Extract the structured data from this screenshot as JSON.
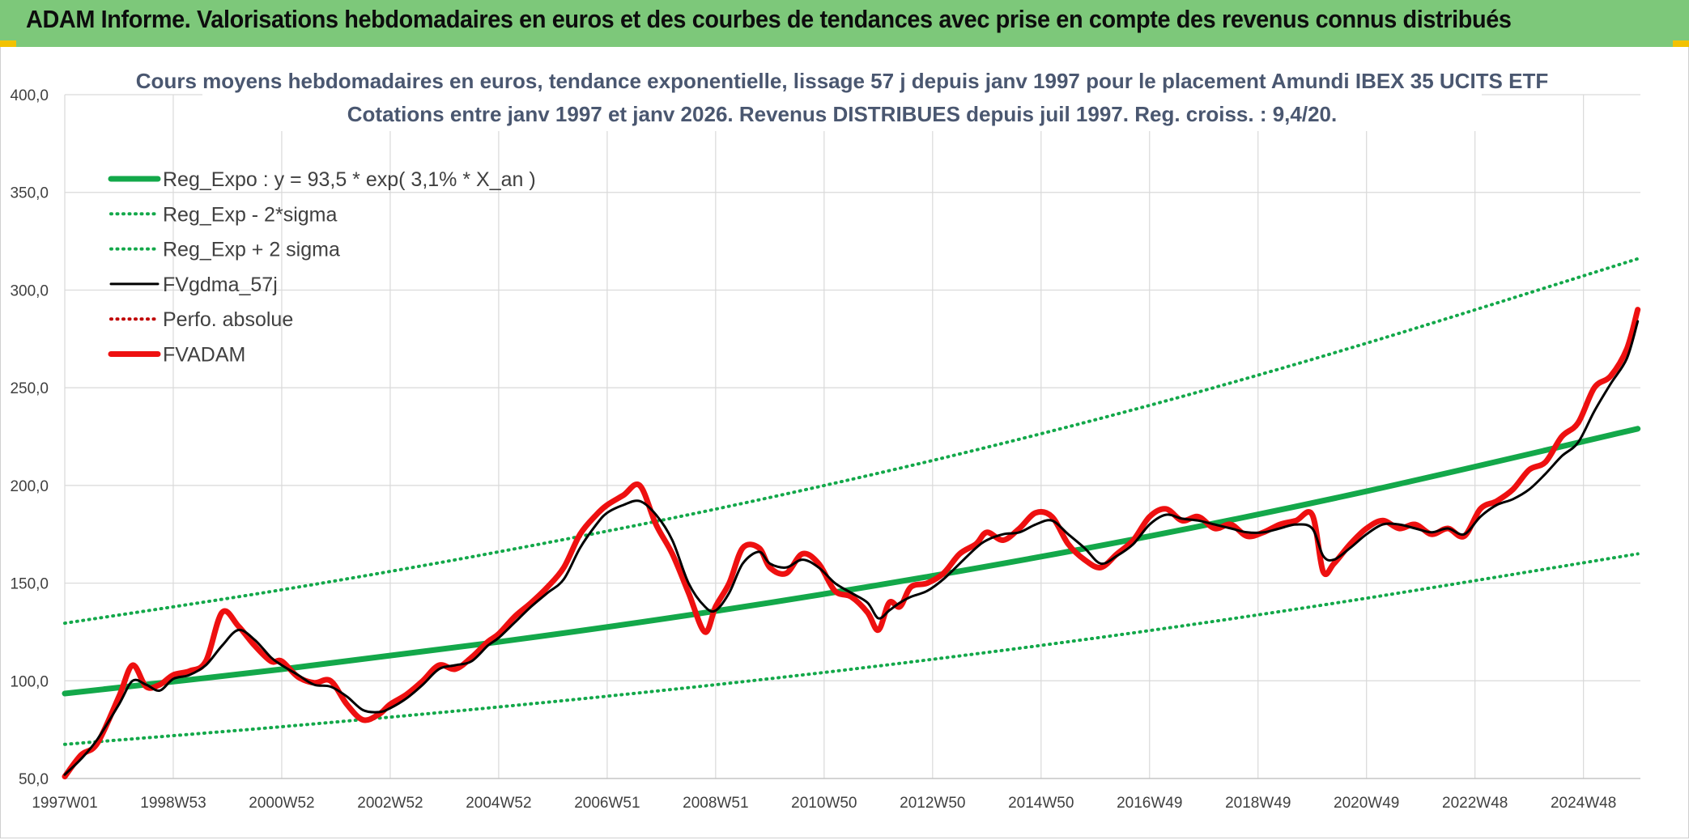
{
  "header": {
    "title": "ADAM Informe. Valorisations hebdomadaires en euros et des courbes de tendances avec prise en compte des revenus connus distribués"
  },
  "chart_data": {
    "type": "line",
    "title": "Cours moyens hebdomadaires en euros, tendance exponentielle, lissage 57 j depuis janv 1997 pour le placement Amundi IBEX 35 UCITS ETF",
    "subtitle": "Cotations entre janv 1997 et janv 2026. Revenus DISTRIBUES depuis juil 1997. Reg. croiss. : 9,4/20.",
    "xlabel": "",
    "ylabel": "",
    "xlim": [
      1997.0,
      2026.05
    ],
    "ylim": [
      50,
      400
    ],
    "y_ticks": [
      "400,0",
      "350,0",
      "300,0",
      "250,0",
      "200,0",
      "150,0",
      "100,0",
      "50,0"
    ],
    "x_tick_labels": [
      "1997W01",
      "1998W53",
      "2000W52",
      "2002W52",
      "2004W52",
      "2006W51",
      "2008W51",
      "2010W50",
      "2012W50",
      "2014W50",
      "2016W49",
      "2018W49",
      "2020W49",
      "2022W48",
      "2024W48"
    ],
    "x_ticks": [
      1997.0,
      1999.0,
      2001.0,
      2003.0,
      2005.0,
      2007.0,
      2009.0,
      2011.0,
      2013.0,
      2015.0,
      2017.0,
      2019.0,
      2021.0,
      2023.0,
      2025.0
    ],
    "grid": true,
    "legend_position": "top-left",
    "colors": {
      "trend": "#13a84a",
      "smoothed": "#000000",
      "perf": "#c00000",
      "price": "#ee1010",
      "grid": "#d9d9d9",
      "title": "#4a5770"
    },
    "series": [
      {
        "name": "Reg_Expo : y = 93,5 * exp( 3,1% *  X_an )",
        "style": "solid-thick",
        "color": "#13a84a",
        "x": [
          1997.0,
          2001.0,
          2005.0,
          2009.0,
          2013.0,
          2017.0,
          2021.0,
          2026.0
        ],
        "values": [
          93.5,
          105.9,
          119.9,
          135.7,
          153.7,
          174.0,
          197.0,
          229.0
        ]
      },
      {
        "name": "Reg_Exp - 2*sigma",
        "style": "dotted",
        "color": "#13a84a",
        "x": [
          1997.0,
          2001.0,
          2005.0,
          2009.0,
          2013.0,
          2017.0,
          2021.0,
          2026.0
        ],
        "values": [
          67.5,
          76.5,
          86.6,
          98.0,
          111.0,
          125.7,
          142.3,
          165.0
        ]
      },
      {
        "name": "Reg_Exp + 2 sigma",
        "style": "dotted",
        "color": "#13a84a",
        "x": [
          1997.0,
          2001.0,
          2005.0,
          2009.0,
          2013.0,
          2017.0,
          2021.0,
          2026.0
        ],
        "values": [
          129.5,
          146.6,
          166.0,
          187.9,
          212.8,
          241.0,
          272.8,
          316.0
        ]
      },
      {
        "name": "FVgdma_57j",
        "style": "solid",
        "color": "#000000",
        "x": [
          1997.0,
          1997.3,
          1997.6,
          1998.0,
          1998.25,
          1998.5,
          1998.75,
          1999.0,
          1999.3,
          1999.6,
          1999.9,
          2000.2,
          2000.5,
          2000.8,
          2001.0,
          2001.3,
          2001.6,
          2001.9,
          2002.2,
          2002.5,
          2002.8,
          2003.0,
          2003.3,
          2003.6,
          2003.9,
          2004.2,
          2004.5,
          2004.8,
          2005.0,
          2005.3,
          2005.6,
          2005.9,
          2006.2,
          2006.5,
          2006.8,
          2007.0,
          2007.3,
          2007.6,
          2007.9,
          2008.2,
          2008.5,
          2008.8,
          2009.0,
          2009.25,
          2009.5,
          2009.8,
          2010.0,
          2010.3,
          2010.6,
          2010.9,
          2011.2,
          2011.5,
          2011.8,
          2012.0,
          2012.2,
          2012.4,
          2012.6,
          2012.9,
          2013.2,
          2013.5,
          2013.8,
          2014.0,
          2014.3,
          2014.6,
          2014.9,
          2015.2,
          2015.5,
          2015.8,
          2016.1,
          2016.4,
          2016.7,
          2017.0,
          2017.3,
          2017.6,
          2017.9,
          2018.2,
          2018.5,
          2018.8,
          2019.1,
          2019.4,
          2019.7,
          2020.0,
          2020.2,
          2020.4,
          2020.7,
          2021.0,
          2021.3,
          2021.6,
          2021.9,
          2022.2,
          2022.5,
          2022.8,
          2023.1,
          2023.4,
          2023.7,
          2024.0,
          2024.3,
          2024.6,
          2024.9,
          2025.2,
          2025.5,
          2025.8,
          2026.0
        ],
        "values": [
          52,
          60,
          70,
          88,
          100,
          98,
          95,
          101,
          103,
          108,
          118,
          126,
          121,
          112,
          108,
          103,
          98,
          97,
          92,
          85,
          84,
          86,
          91,
          98,
          106,
          108,
          110,
          118,
          122,
          130,
          138,
          145,
          152,
          168,
          180,
          186,
          190,
          192,
          185,
          172,
          150,
          138,
          136,
          145,
          160,
          166,
          160,
          158,
          162,
          158,
          150,
          145,
          140,
          132,
          136,
          140,
          143,
          146,
          152,
          160,
          168,
          172,
          175,
          176,
          180,
          182,
          175,
          168,
          160,
          164,
          170,
          180,
          185,
          183,
          182,
          180,
          178,
          176,
          176,
          178,
          180,
          178,
          164,
          162,
          168,
          175,
          180,
          180,
          178,
          176,
          178,
          175,
          184,
          190,
          193,
          198,
          206,
          215,
          222,
          238,
          252,
          265,
          284
        ]
      },
      {
        "name": "Perfo. absolue",
        "style": "dotted",
        "color": "#c00000",
        "x": [],
        "values": []
      },
      {
        "name": "FVADAM",
        "style": "solid-thick",
        "color": "#ee1010",
        "x": [
          1997.0,
          1997.3,
          1997.6,
          1998.0,
          1998.25,
          1998.5,
          1998.75,
          1999.0,
          1999.3,
          1999.6,
          1999.9,
          2000.2,
          2000.5,
          2000.8,
          2001.0,
          2001.3,
          2001.6,
          2001.9,
          2002.2,
          2002.5,
          2002.8,
          2003.0,
          2003.3,
          2003.6,
          2003.9,
          2004.2,
          2004.5,
          2004.8,
          2005.0,
          2005.3,
          2005.6,
          2005.9,
          2006.2,
          2006.5,
          2006.8,
          2007.0,
          2007.3,
          2007.6,
          2007.9,
          2008.2,
          2008.5,
          2008.8,
          2009.0,
          2009.25,
          2009.5,
          2009.8,
          2010.0,
          2010.3,
          2010.6,
          2010.9,
          2011.2,
          2011.5,
          2011.8,
          2012.0,
          2012.2,
          2012.4,
          2012.6,
          2012.9,
          2013.2,
          2013.5,
          2013.8,
          2014.0,
          2014.3,
          2014.6,
          2014.9,
          2015.2,
          2015.5,
          2015.8,
          2016.1,
          2016.4,
          2016.7,
          2017.0,
          2017.3,
          2017.6,
          2017.9,
          2018.2,
          2018.5,
          2018.8,
          2019.1,
          2019.4,
          2019.7,
          2020.0,
          2020.2,
          2020.4,
          2020.7,
          2021.0,
          2021.3,
          2021.6,
          2021.9,
          2022.2,
          2022.5,
          2022.8,
          2023.1,
          2023.4,
          2023.7,
          2024.0,
          2024.3,
          2024.6,
          2024.9,
          2025.2,
          2025.5,
          2025.8,
          2026.0
        ],
        "values": [
          51,
          62,
          68,
          92,
          108,
          97,
          98,
          103,
          105,
          110,
          135,
          128,
          118,
          110,
          110,
          102,
          99,
          100,
          88,
          80,
          83,
          88,
          93,
          100,
          108,
          106,
          112,
          120,
          124,
          133,
          140,
          148,
          158,
          175,
          185,
          190,
          195,
          200,
          180,
          165,
          145,
          125,
          138,
          150,
          168,
          168,
          158,
          155,
          165,
          160,
          146,
          143,
          135,
          126,
          140,
          138,
          148,
          150,
          155,
          165,
          170,
          176,
          172,
          178,
          186,
          184,
          170,
          162,
          158,
          165,
          172,
          184,
          188,
          182,
          184,
          178,
          180,
          174,
          176,
          180,
          182,
          185,
          156,
          160,
          170,
          178,
          182,
          178,
          180,
          175,
          178,
          174,
          188,
          192,
          198,
          208,
          212,
          225,
          232,
          250,
          256,
          270,
          290
        ]
      }
    ]
  }
}
